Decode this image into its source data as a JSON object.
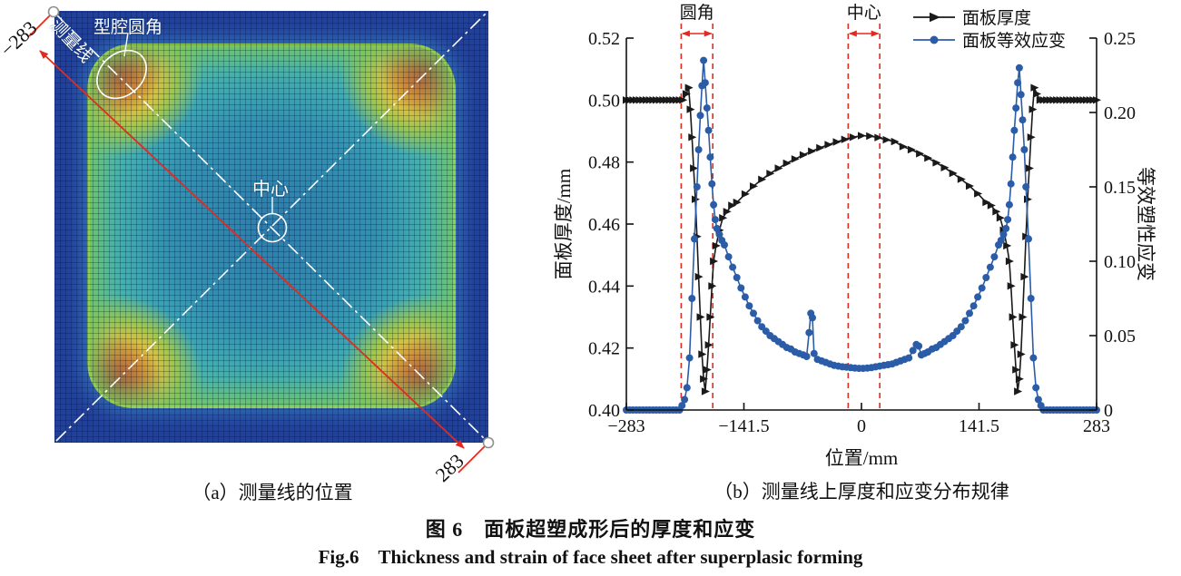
{
  "figure": {
    "caption_zh": "图 6　面板超塑成形后的厚度和应变",
    "caption_en": "Fig.6　Thickness and strain of face sheet after superplasic forming"
  },
  "panel_a": {
    "caption": "（a）测量线的位置",
    "labels": {
      "measure_line": "测量线",
      "cavity_fillet": "型腔圆角",
      "center": "中心",
      "start": "−283",
      "end": "283"
    },
    "colors": {
      "measure_line_red": "#e02b20",
      "diagonal_white": "#ffffff",
      "field_low_blue": "#21409a",
      "field_mid_teal": "#3fadb8",
      "field_edge_green": "#74c86a",
      "field_hot_red": "#c81f12"
    }
  },
  "panel_b": {
    "caption": "（b）测量线上厚度和应变分布规律"
  },
  "chart_data": {
    "type": "line",
    "title": "",
    "xlabel": "位置/mm",
    "ylabel_left": "面板厚度/mm",
    "ylabel_right": "等效塑性应变",
    "xlim": [
      -283,
      283
    ],
    "ylim_left": [
      0.4,
      0.52
    ],
    "ylim_right": [
      0,
      0.25
    ],
    "grid": false,
    "legend_position": "top-right",
    "x_tick_values": [
      -283,
      -141.5,
      0,
      141.5,
      283
    ],
    "x_tick_labels": [
      "−283",
      "−141.5",
      "0",
      "141.5",
      "283"
    ],
    "y_tick_values_left": [
      0.4,
      0.42,
      0.44,
      0.46,
      0.48,
      0.5,
      0.52
    ],
    "y_tick_labels_left": [
      "0.40",
      "0.42",
      "0.44",
      "0.46",
      "0.48",
      "0.50",
      "0.52"
    ],
    "y_tick_values_right": [
      0,
      0.05,
      0.1,
      0.15,
      0.2,
      0.25
    ],
    "y_tick_labels_right": [
      "0",
      "0.05",
      "0.10",
      "0.15",
      "0.20",
      "0.25"
    ],
    "annotation_color": "#e02b20",
    "annotation_bands": [
      {
        "label": "圆角",
        "x_range": [
          -217,
          -179
        ]
      },
      {
        "label": "中心",
        "x_range": [
          -16,
          22
        ]
      }
    ],
    "legend": [
      {
        "name": "面板厚度",
        "color": "#1a1a1a",
        "marker": "triangle"
      },
      {
        "name": "面板等效应变",
        "color": "#2b5ca8",
        "marker": "circle"
      }
    ],
    "series": [
      {
        "id": "thickness-series",
        "name": "面板厚度",
        "axis": "left",
        "color": "#1a1a1a",
        "marker": "triangle",
        "points": [
          [
            -283,
            0.5
          ],
          [
            -279,
            0.5
          ],
          [
            -275,
            0.5
          ],
          [
            -271,
            0.5
          ],
          [
            -267,
            0.5
          ],
          [
            -263,
            0.5
          ],
          [
            -259,
            0.5
          ],
          [
            -255,
            0.5
          ],
          [
            -251,
            0.5
          ],
          [
            -247,
            0.5
          ],
          [
            -243,
            0.5
          ],
          [
            -239,
            0.5
          ],
          [
            -235,
            0.5
          ],
          [
            -231,
            0.5
          ],
          [
            -227,
            0.5
          ],
          [
            -223,
            0.5
          ],
          [
            -219,
            0.5
          ],
          [
            -215,
            0.5
          ],
          [
            -211,
            0.502
          ],
          [
            -208,
            0.504
          ],
          [
            -206,
            0.497
          ],
          [
            -204,
            0.488
          ],
          [
            -202,
            0.478
          ],
          [
            -200,
            0.468
          ],
          [
            -198,
            0.456
          ],
          [
            -196,
            0.443
          ],
          [
            -194,
            0.43
          ],
          [
            -192,
            0.418
          ],
          [
            -190,
            0.41
          ],
          [
            -188,
            0.406
          ],
          [
            -186,
            0.413
          ],
          [
            -184,
            0.421
          ],
          [
            -182,
            0.43
          ],
          [
            -180,
            0.44
          ],
          [
            -178,
            0.448
          ],
          [
            -175,
            0.453
          ],
          [
            -171,
            0.458
          ],
          [
            -167,
            0.462
          ],
          [
            -162,
            0.464
          ],
          [
            -156,
            0.466
          ],
          [
            -150,
            0.467
          ],
          [
            -140,
            0.4697
          ],
          [
            -130,
            0.4722
          ],
          [
            -120,
            0.4744
          ],
          [
            -110,
            0.4763
          ],
          [
            -100,
            0.478
          ],
          [
            -90,
            0.4796
          ],
          [
            -80,
            0.481
          ],
          [
            -70,
            0.4823
          ],
          [
            -60,
            0.4835
          ],
          [
            -50,
            0.4846
          ],
          [
            -40,
            0.4856
          ],
          [
            -30,
            0.4865
          ],
          [
            -20,
            0.4873
          ],
          [
            -10,
            0.488
          ],
          [
            0,
            0.4885
          ],
          [
            10,
            0.4884
          ],
          [
            20,
            0.4879
          ],
          [
            30,
            0.4872
          ],
          [
            40,
            0.4866
          ],
          [
            50,
            0.485
          ],
          [
            60,
            0.484
          ],
          [
            70,
            0.4827
          ],
          [
            80,
            0.4813
          ],
          [
            90,
            0.4798
          ],
          [
            100,
            0.4782
          ],
          [
            110,
            0.4764
          ],
          [
            120,
            0.4745
          ],
          [
            130,
            0.4723
          ],
          [
            140,
            0.4698
          ],
          [
            150,
            0.467
          ],
          [
            156,
            0.466
          ],
          [
            162,
            0.464
          ],
          [
            167,
            0.462
          ],
          [
            171,
            0.458
          ],
          [
            175,
            0.453
          ],
          [
            178,
            0.448
          ],
          [
            180,
            0.44
          ],
          [
            182,
            0.43
          ],
          [
            184,
            0.421
          ],
          [
            186,
            0.413
          ],
          [
            188,
            0.406
          ],
          [
            190,
            0.41
          ],
          [
            192,
            0.418
          ],
          [
            194,
            0.43
          ],
          [
            196,
            0.443
          ],
          [
            198,
            0.456
          ],
          [
            200,
            0.468
          ],
          [
            202,
            0.478
          ],
          [
            204,
            0.488
          ],
          [
            206,
            0.497
          ],
          [
            208,
            0.504
          ],
          [
            211,
            0.502
          ],
          [
            215,
            0.5
          ],
          [
            219,
            0.5
          ],
          [
            223,
            0.5
          ],
          [
            227,
            0.5
          ],
          [
            231,
            0.5
          ],
          [
            235,
            0.5
          ],
          [
            239,
            0.5
          ],
          [
            243,
            0.5
          ],
          [
            247,
            0.5
          ],
          [
            251,
            0.5
          ],
          [
            255,
            0.5
          ],
          [
            259,
            0.5
          ],
          [
            263,
            0.5
          ],
          [
            267,
            0.5
          ],
          [
            271,
            0.5
          ],
          [
            275,
            0.5
          ],
          [
            279,
            0.5
          ],
          [
            283,
            0.5
          ]
        ]
      },
      {
        "id": "strain-series",
        "name": "面板等效应变",
        "axis": "right",
        "color": "#2b5ca8",
        "marker": "circle",
        "points": [
          [
            -283,
            0
          ],
          [
            -279,
            0
          ],
          [
            -275,
            0
          ],
          [
            -271,
            0
          ],
          [
            -267,
            0
          ],
          [
            -263,
            0
          ],
          [
            -259,
            0
          ],
          [
            -255,
            0
          ],
          [
            -251,
            0
          ],
          [
            -247,
            0
          ],
          [
            -243,
            0
          ],
          [
            -239,
            0
          ],
          [
            -235,
            0
          ],
          [
            -231,
            0
          ],
          [
            -227,
            0
          ],
          [
            -223,
            0
          ],
          [
            -219,
            0
          ],
          [
            -216,
            0.003
          ],
          [
            -213,
            0.007
          ],
          [
            -210,
            0.015
          ],
          [
            -207,
            0.035
          ],
          [
            -204,
            0.075
          ],
          [
            -201,
            0.115
          ],
          [
            -198,
            0.15
          ],
          [
            -196,
            0.175
          ],
          [
            -194,
            0.198
          ],
          [
            -192,
            0.218
          ],
          [
            -190,
            0.235
          ],
          [
            -188,
            0.22
          ],
          [
            -186,
            0.203
          ],
          [
            -184,
            0.188
          ],
          [
            -182,
            0.17
          ],
          [
            -180,
            0.152
          ],
          [
            -178,
            0.138
          ],
          [
            -176,
            0.128
          ],
          [
            -174,
            0.122
          ],
          [
            -171,
            0.118
          ],
          [
            -168,
            0.114
          ],
          [
            -165,
            0.111
          ],
          [
            -160,
            0.103
          ],
          [
            -155,
            0.096
          ],
          [
            -150,
            0.089
          ],
          [
            -145,
            0.082
          ],
          [
            -140,
            0.076
          ],
          [
            -135,
            0.07
          ],
          [
            -130,
            0.065
          ],
          [
            -125,
            0.06
          ],
          [
            -120,
            0.056
          ],
          [
            -115,
            0.053
          ],
          [
            -110,
            0.05
          ],
          [
            -105,
            0.048
          ],
          [
            -100,
            0.046
          ],
          [
            -95,
            0.044
          ],
          [
            -90,
            0.042
          ],
          [
            -85,
            0.041
          ],
          [
            -80,
            0.039
          ],
          [
            -75,
            0.038
          ],
          [
            -70,
            0.037
          ],
          [
            -66,
            0.036
          ],
          [
            -63,
            0.052
          ],
          [
            -61,
            0.065
          ],
          [
            -59,
            0.062
          ],
          [
            -57,
            0.038
          ],
          [
            -53,
            0.034
          ],
          [
            -48,
            0.033
          ],
          [
            -43,
            0.032
          ],
          [
            -38,
            0.031
          ],
          [
            -33,
            0.03
          ],
          [
            -28,
            0.0295
          ],
          [
            -23,
            0.029
          ],
          [
            -18,
            0.0288
          ],
          [
            -13,
            0.0285
          ],
          [
            -8,
            0.0282
          ],
          [
            -3,
            0.028
          ],
          [
            2,
            0.028
          ],
          [
            7,
            0.0282
          ],
          [
            12,
            0.0285
          ],
          [
            17,
            0.029
          ],
          [
            22,
            0.0295
          ],
          [
            27,
            0.03
          ],
          [
            32,
            0.0305
          ],
          [
            37,
            0.031
          ],
          [
            42,
            0.032
          ],
          [
            47,
            0.033
          ],
          [
            52,
            0.034
          ],
          [
            57,
            0.035
          ],
          [
            62,
            0.04
          ],
          [
            66,
            0.044
          ],
          [
            69,
            0.043
          ],
          [
            72,
            0.037
          ],
          [
            76,
            0.038
          ],
          [
            80,
            0.039
          ],
          [
            85,
            0.041
          ],
          [
            90,
            0.042
          ],
          [
            95,
            0.044
          ],
          [
            100,
            0.046
          ],
          [
            105,
            0.048
          ],
          [
            110,
            0.05
          ],
          [
            115,
            0.053
          ],
          [
            120,
            0.056
          ],
          [
            125,
            0.06
          ],
          [
            130,
            0.065
          ],
          [
            135,
            0.07
          ],
          [
            140,
            0.076
          ],
          [
            145,
            0.082
          ],
          [
            150,
            0.089
          ],
          [
            155,
            0.096
          ],
          [
            160,
            0.103
          ],
          [
            165,
            0.111
          ],
          [
            168,
            0.114
          ],
          [
            171,
            0.118
          ],
          [
            174,
            0.122
          ],
          [
            176,
            0.128
          ],
          [
            178,
            0.138
          ],
          [
            180,
            0.152
          ],
          [
            182,
            0.17
          ],
          [
            184,
            0.188
          ],
          [
            186,
            0.203
          ],
          [
            188,
            0.22
          ],
          [
            190,
            0.23
          ],
          [
            192,
            0.212
          ],
          [
            194,
            0.195
          ],
          [
            196,
            0.175
          ],
          [
            198,
            0.15
          ],
          [
            201,
            0.115
          ],
          [
            204,
            0.075
          ],
          [
            207,
            0.035
          ],
          [
            210,
            0.015
          ],
          [
            213,
            0.007
          ],
          [
            216,
            0.003
          ],
          [
            219,
            0
          ],
          [
            223,
            0
          ],
          [
            227,
            0
          ],
          [
            231,
            0
          ],
          [
            235,
            0
          ],
          [
            239,
            0
          ],
          [
            243,
            0
          ],
          [
            247,
            0
          ],
          [
            251,
            0
          ],
          [
            255,
            0
          ],
          [
            259,
            0
          ],
          [
            263,
            0
          ],
          [
            267,
            0
          ],
          [
            271,
            0
          ],
          [
            275,
            0
          ],
          [
            279,
            0
          ],
          [
            283,
            0
          ]
        ]
      }
    ]
  }
}
